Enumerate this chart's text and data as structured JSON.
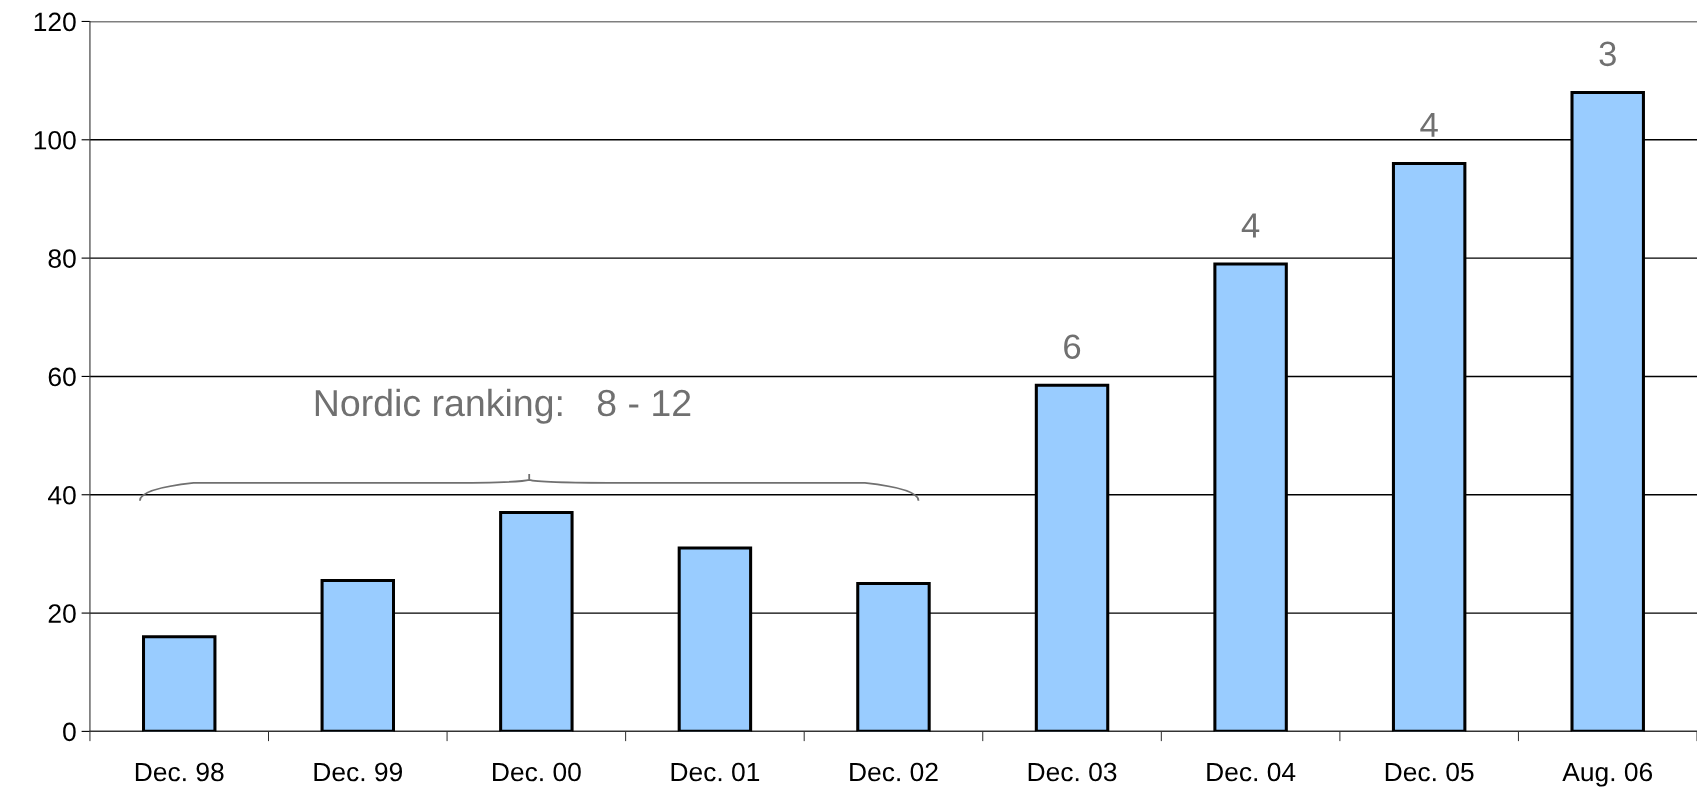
{
  "chart_data": {
    "type": "bar",
    "categories": [
      "Dec. 98",
      "Dec. 99",
      "Dec. 00",
      "Dec. 01",
      "Dec. 02",
      "Dec. 03",
      "Dec. 04",
      "Dec. 05",
      "Aug. 06"
    ],
    "values": [
      16,
      25.5,
      37,
      31,
      25,
      58.5,
      79,
      96,
      108
    ],
    "color": "#99ccff",
    "ylim": [
      0,
      120
    ],
    "yticks": [
      0,
      20,
      40,
      60,
      80,
      100,
      120
    ],
    "grid": "y",
    "annotations": [
      "Nordic ranking:   8 - 12",
      {
        "text": "6",
        "x": "Dec. 03",
        "y": 58.5
      },
      {
        "text": "4",
        "x": "Dec. 04",
        "y": 79
      },
      {
        "text": "4",
        "x": "Dec. 05",
        "y": 96
      },
      {
        "text": "3",
        "x": "Aug. 06",
        "y": 108
      }
    ]
  }
}
